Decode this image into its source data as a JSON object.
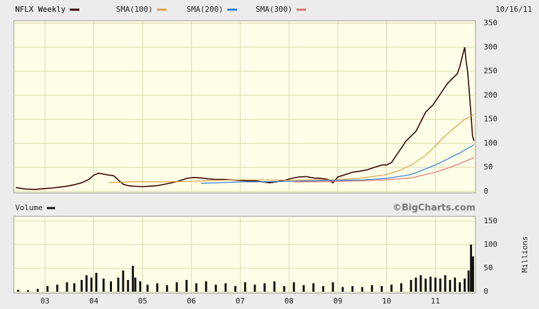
{
  "chart_data": [
    {
      "type": "line",
      "title": "NFLX Weekly",
      "date": "10/16/11",
      "xlim": [
        2002.36,
        2011.82
      ],
      "xticks": [
        2003,
        2004,
        2005,
        2006,
        2007,
        2008,
        2009,
        2010,
        2011
      ],
      "ylim": [
        -3,
        355
      ],
      "yticks": [
        0,
        50,
        100,
        150,
        200,
        250,
        300,
        350
      ],
      "grid": true,
      "series": [
        {
          "name": "NFLX Weekly",
          "color": "#3a0000",
          "x": [
            2002.4,
            2002.6,
            2002.8,
            2003.0,
            2003.15,
            2003.3,
            2003.45,
            2003.6,
            2003.75,
            2003.9,
            2004.0,
            2004.1,
            2004.2,
            2004.3,
            2004.4,
            2004.5,
            2004.6,
            2004.7,
            2004.8,
            2005.0,
            2005.15,
            2005.3,
            2005.45,
            2005.6,
            2005.75,
            2005.9,
            2006.05,
            2006.2,
            2006.35,
            2006.5,
            2006.65,
            2006.8,
            2007.0,
            2007.15,
            2007.3,
            2007.45,
            2007.6,
            2007.75,
            2007.9,
            2008.05,
            2008.2,
            2008.35,
            2008.5,
            2008.65,
            2008.8,
            2008.9,
            2009.0,
            2009.15,
            2009.3,
            2009.45,
            2009.6,
            2009.75,
            2009.9,
            2010.0,
            2010.1,
            2010.2,
            2010.3,
            2010.4,
            2010.5,
            2010.6,
            2010.7,
            2010.8,
            2010.9,
            2010.95,
            2011.05,
            2011.15,
            2011.25,
            2011.35,
            2011.45,
            2011.5,
            2011.55,
            2011.6,
            2011.63,
            2011.66,
            2011.7,
            2011.73,
            2011.76,
            2011.79
          ],
          "values": [
            8,
            5,
            4,
            6,
            7,
            9,
            11,
            14,
            18,
            25,
            34,
            38,
            36,
            34,
            33,
            24,
            15,
            12,
            11,
            10,
            11,
            12,
            15,
            18,
            22,
            27,
            29,
            28,
            26,
            25,
            25,
            24,
            23,
            22,
            22,
            20,
            18,
            20,
            23,
            27,
            30,
            31,
            28,
            27,
            25,
            18,
            30,
            35,
            40,
            42,
            45,
            50,
            55,
            55,
            60,
            75,
            90,
            105,
            115,
            125,
            145,
            165,
            175,
            180,
            195,
            210,
            225,
            235,
            245,
            260,
            280,
            300,
            270,
            250,
            200,
            160,
            115,
            105
          ]
        },
        {
          "name": "SMA(100)",
          "color": "#e0a040",
          "x": [
            2004.3,
            2004.8,
            2005.5,
            2006.0,
            2006.5,
            2007.0,
            2007.5,
            2008.0,
            2008.5,
            2009.0,
            2009.5,
            2010.0,
            2010.3,
            2010.5,
            2010.8,
            2011.0,
            2011.3,
            2011.6,
            2011.79
          ],
          "values": [
            18,
            20,
            20,
            21,
            23,
            24,
            24,
            23,
            24,
            24,
            28,
            35,
            45,
            55,
            75,
            95,
            125,
            150,
            160
          ]
        },
        {
          "name": "SMA(200)",
          "color": "#2a7ae2",
          "x": [
            2006.2,
            2006.6,
            2007.0,
            2007.5,
            2008.0,
            2008.5,
            2009.0,
            2009.5,
            2010.0,
            2010.5,
            2011.0,
            2011.3,
            2011.5,
            2011.79
          ],
          "values": [
            17,
            18,
            20,
            20,
            21,
            22,
            23,
            24,
            27,
            35,
            55,
            70,
            80,
            97
          ]
        },
        {
          "name": "SMA(300)",
          "color": "#e07070",
          "x": [
            2008.1,
            2008.6,
            2009.0,
            2009.5,
            2010.0,
            2010.5,
            2011.0,
            2011.3,
            2011.5,
            2011.79
          ],
          "values": [
            20,
            20,
            21,
            22,
            24,
            28,
            40,
            50,
            58,
            70
          ]
        }
      ]
    },
    {
      "type": "bar",
      "title": "Volume",
      "source": "©BigCharts.com",
      "y_label": "Millions",
      "xlim": [
        2002.36,
        2011.82
      ],
      "xticks": [
        {
          "value": 2003,
          "label": "03"
        },
        {
          "value": 2004,
          "label": "04"
        },
        {
          "value": 2005,
          "label": "05"
        },
        {
          "value": 2006,
          "label": "06"
        },
        {
          "value": 2007,
          "label": "07"
        },
        {
          "value": 2008,
          "label": "08"
        },
        {
          "value": 2009,
          "label": "09"
        },
        {
          "value": 2010,
          "label": "10"
        },
        {
          "value": 2011,
          "label": "11"
        }
      ],
      "ylim": [
        0,
        160
      ],
      "yticks": [
        0,
        50,
        100,
        150
      ],
      "grid": true,
      "series": [
        {
          "name": "Volume",
          "color": "#111111",
          "x": [
            2002.45,
            2002.65,
            2002.85,
            2003.05,
            2003.25,
            2003.45,
            2003.6,
            2003.75,
            2003.85,
            2003.95,
            2004.05,
            2004.2,
            2004.35,
            2004.5,
            2004.6,
            2004.7,
            2004.8,
            2004.85,
            2004.95,
            2005.1,
            2005.3,
            2005.5,
            2005.7,
            2005.9,
            2006.1,
            2006.3,
            2006.5,
            2006.7,
            2006.9,
            2007.1,
            2007.3,
            2007.5,
            2007.7,
            2007.9,
            2008.1,
            2008.3,
            2008.5,
            2008.7,
            2008.9,
            2009.1,
            2009.3,
            2009.5,
            2009.7,
            2009.9,
            2010.1,
            2010.3,
            2010.5,
            2010.6,
            2010.7,
            2010.8,
            2010.9,
            2011.0,
            2011.1,
            2011.2,
            2011.3,
            2011.4,
            2011.5,
            2011.6,
            2011.68,
            2011.73,
            2011.77
          ],
          "values": [
            4,
            3,
            6,
            12,
            15,
            20,
            18,
            25,
            35,
            30,
            40,
            28,
            22,
            30,
            45,
            25,
            55,
            30,
            22,
            15,
            18,
            14,
            20,
            25,
            18,
            22,
            15,
            18,
            12,
            20,
            15,
            18,
            22,
            12,
            20,
            14,
            18,
            12,
            20,
            10,
            12,
            10,
            14,
            12,
            15,
            18,
            25,
            30,
            35,
            28,
            32,
            30,
            28,
            35,
            25,
            30,
            20,
            28,
            45,
            100,
            75
          ]
        }
      ]
    }
  ]
}
